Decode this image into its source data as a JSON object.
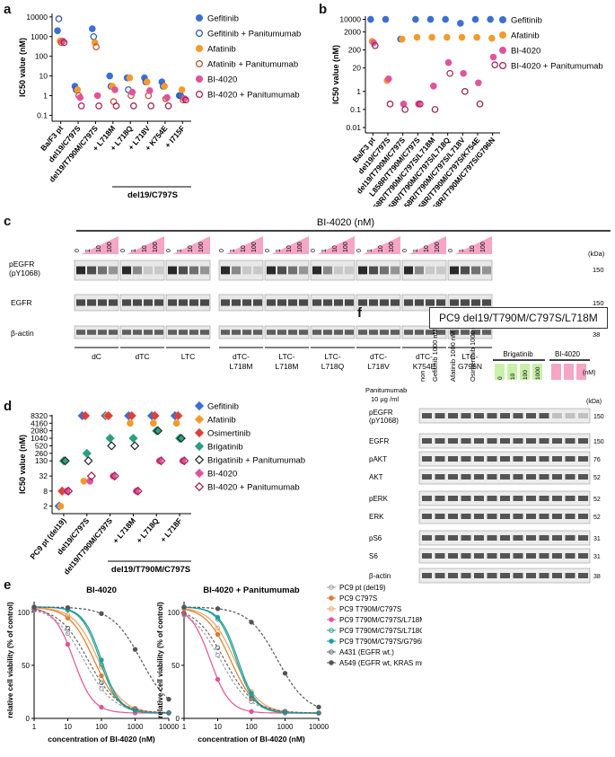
{
  "panel_labels": {
    "a": "a",
    "b": "b",
    "c": "c",
    "d": "d",
    "e": "e",
    "f": "f"
  },
  "chart_a": {
    "type": "scatter",
    "ylabel": "IC50 value (nM)",
    "yticks": [
      "10000",
      "1000",
      "100",
      "10",
      "1",
      "0.1"
    ],
    "categories": [
      "Ba/F3 pt",
      "del19/C797S",
      "del19/T790M/C797S",
      "+ L718M",
      "+ L718Q",
      "+ L718V",
      "+ K754E",
      "+ I715F"
    ],
    "group_label": "del19/C797S",
    "legend": [
      "Gefitinib",
      "Gefitinib + Panitumumab",
      "Afatinib",
      "Afatinib + Panitumumab",
      "BI-4020",
      "BI-4020 + Panitumumab"
    ],
    "colors": {
      "gef": "#4a90d9",
      "afa": "#f39a2d",
      "bi": "#e0549a",
      "bip": "#a0204f"
    },
    "series": [
      {
        "name": "Gefitinib",
        "values": [
          2000,
          3,
          2500,
          10,
          8,
          8,
          5,
          1
        ]
      },
      {
        "name": "Gefitinib + Panitumumab",
        "values": [
          8000,
          2,
          1000,
          3,
          2,
          5,
          3,
          1
        ]
      },
      {
        "name": "Afatinib",
        "values": [
          600,
          2,
          500,
          3,
          8,
          5,
          3,
          2
        ]
      },
      {
        "name": "Afatinib + Panitumumab",
        "values": [
          500,
          1,
          300,
          0.5,
          1,
          1,
          0.7,
          0.6
        ]
      },
      {
        "name": "BI-4020",
        "values": [
          600,
          0.8,
          1,
          2,
          1.5,
          1.8,
          0.8,
          0.7
        ]
      },
      {
        "name": "BI-4020 + Panitumumab",
        "values": [
          500,
          0.3,
          0.3,
          0.3,
          0.3,
          0.3,
          0.3,
          0.6
        ]
      }
    ]
  },
  "chart_b": {
    "type": "scatter",
    "ylabel": "IC50 value (nM)",
    "yticks": [
      "10000",
      "2000",
      "200",
      "20",
      "1",
      "0.1",
      "0.01"
    ],
    "categories": [
      "Ba/F3 pt",
      "del19/C797S",
      "del19/T790M/C797S",
      "L858R/T790M/C797S",
      "L858R/T790M/C797S/L718M",
      "L858R/T790M/C797S/L718Q",
      "L858R/T790M/C797S/L718V",
      "L858R/T790M/C797S/K754E",
      "L858R/T790M/C797S/G796N"
    ],
    "legend": [
      "Gefitinib",
      "Afatinib",
      "BI-4020",
      "BI-4020 + Panitumumab"
    ],
    "series": [
      {
        "name": "Gefitinib",
        "values": [
          10000,
          10000,
          800,
          10000,
          10000,
          10000,
          6000,
          10000,
          10000
        ]
      },
      {
        "name": "Afatinib",
        "values": [
          600,
          4,
          800,
          1000,
          1000,
          1000,
          1000,
          1000,
          900
        ]
      },
      {
        "name": "BI-4020",
        "values": [
          500,
          5,
          0.2,
          0.2,
          2,
          40,
          10,
          3,
          80
        ]
      },
      {
        "name": "BI-4020 + Panitumumab",
        "values": [
          350,
          0.2,
          0.1,
          0.2,
          0.1,
          10,
          1,
          0.2,
          30
        ]
      }
    ]
  },
  "blot_c": {
    "title": "BI-4020 (nM)",
    "kda": "(kDa)",
    "conc": [
      "0",
      "1",
      "10",
      "100"
    ],
    "rows": [
      "pEGFR\n(pY1068)",
      "EGFR",
      "β-actin"
    ],
    "row_a": "pEGFR",
    "row_b": "(pY1068)",
    "markers": [
      "150",
      "150",
      "38"
    ],
    "groups": [
      "dC",
      "dTC",
      "LTC",
      "dTC-\nL718M",
      "LTC-\nL718M",
      "LTC-\nL718Q",
      "dTC-\nL718V",
      "dTC-\nK754E",
      "LTC-\nG796N"
    ]
  },
  "chart_d": {
    "type": "scatter",
    "ylabel": "IC50 value (nM)",
    "yticks": [
      "8320",
      "4160",
      "2080",
      "1040",
      "520",
      "260",
      "130",
      "32",
      "8",
      "2"
    ],
    "categories": [
      "PC9 pt (del19)",
      "del19/C797S",
      "del19/T790M/C797S",
      "+ L718M",
      "+ L718Q",
      "+ L718F"
    ],
    "group_label": "del19/T790M/C797S",
    "legend": [
      "Gefitinib",
      "Afatinib",
      "Osimertinib",
      "Brigatinib",
      "Brigatinib + Panitumumab",
      "BI-4020",
      "BI-4020 + Panitumumab"
    ],
    "series": [
      {
        "name": "Gefitinib",
        "values": [
          2,
          8320,
          8320,
          8320,
          8320,
          8320
        ]
      },
      {
        "name": "Afatinib",
        "values": [
          2,
          20,
          8320,
          4160,
          4160,
          4160
        ]
      },
      {
        "name": "Osimertinib",
        "values": [
          8,
          8320,
          8320,
          8320,
          8320,
          8320
        ]
      },
      {
        "name": "Brigatinib",
        "values": [
          130,
          260,
          1040,
          1040,
          2080,
          1040
        ]
      },
      {
        "name": "Brigatinib + Panitumumab",
        "values": [
          130,
          130,
          520,
          520,
          2080,
          1040
        ]
      },
      {
        "name": "BI-4020",
        "values": [
          8,
          20,
          32,
          8,
          130,
          130
        ]
      },
      {
        "name": "BI-4020 + Panitumumab",
        "values": [
          8,
          32,
          32,
          8,
          130,
          130
        ]
      }
    ]
  },
  "chart_e": {
    "left_title": "BI-4020",
    "right_title": "BI-4020 + Panitumumab",
    "ylabel": "relative cell viability (% of control)",
    "xlabel": "concentration of BI-4020 (nM)",
    "yticks": [
      "100",
      "50",
      "0"
    ],
    "xticks": [
      "1",
      "10",
      "100",
      "1000",
      "10000"
    ],
    "legend": [
      "PC9 pt (del19)",
      "PC9 C797S",
      "PC9 T790M/C797S",
      "PC9 T790M/C797S/L718M",
      "PC9 T790M/C797S/L718Q",
      "PC9 T790M/C797S/G796N",
      "A431 (EGFR wt.)",
      "A549 (EGFR wt, KRAS mut)"
    ],
    "colors": [
      "#9aa0a6",
      "#e07a2d",
      "#f0a060",
      "#e0549a",
      "#2aa080",
      "#1aa0a8",
      "#666666",
      "#555555"
    ]
  },
  "blot_f": {
    "title": "PC9 del19/T790M/C797S/L718M",
    "col_labels": [
      "non",
      "Gefitinib 1000 nM",
      "Afatinib 1000 nM",
      "Osimertinib 1000 nM",
      "Brigatinib",
      "BI-4020"
    ],
    "nm": "(nM)",
    "kda": "(kDa)",
    "panitumumab_label": "Panitumumab\n10 µg /ml",
    "pan_a": "Panitumumab",
    "pan_b": "10 µg /ml",
    "conc": [
      "0",
      "10",
      "100",
      "1000"
    ],
    "rows": [
      "pEGFR\n(pY1068)",
      "EGFR",
      "pAKT",
      "AKT",
      "pERK",
      "ERK",
      "pS6",
      "S6",
      "β-actin"
    ],
    "row_labels": [
      "pEGFR",
      "(pY1068)",
      "EGFR",
      "pAKT",
      "AKT",
      "pERK",
      "ERK",
      "pS6",
      "S6",
      "β-actin"
    ],
    "markers": [
      "150",
      "150",
      "76",
      "52",
      "52",
      "52",
      "31",
      "31",
      "38"
    ]
  }
}
